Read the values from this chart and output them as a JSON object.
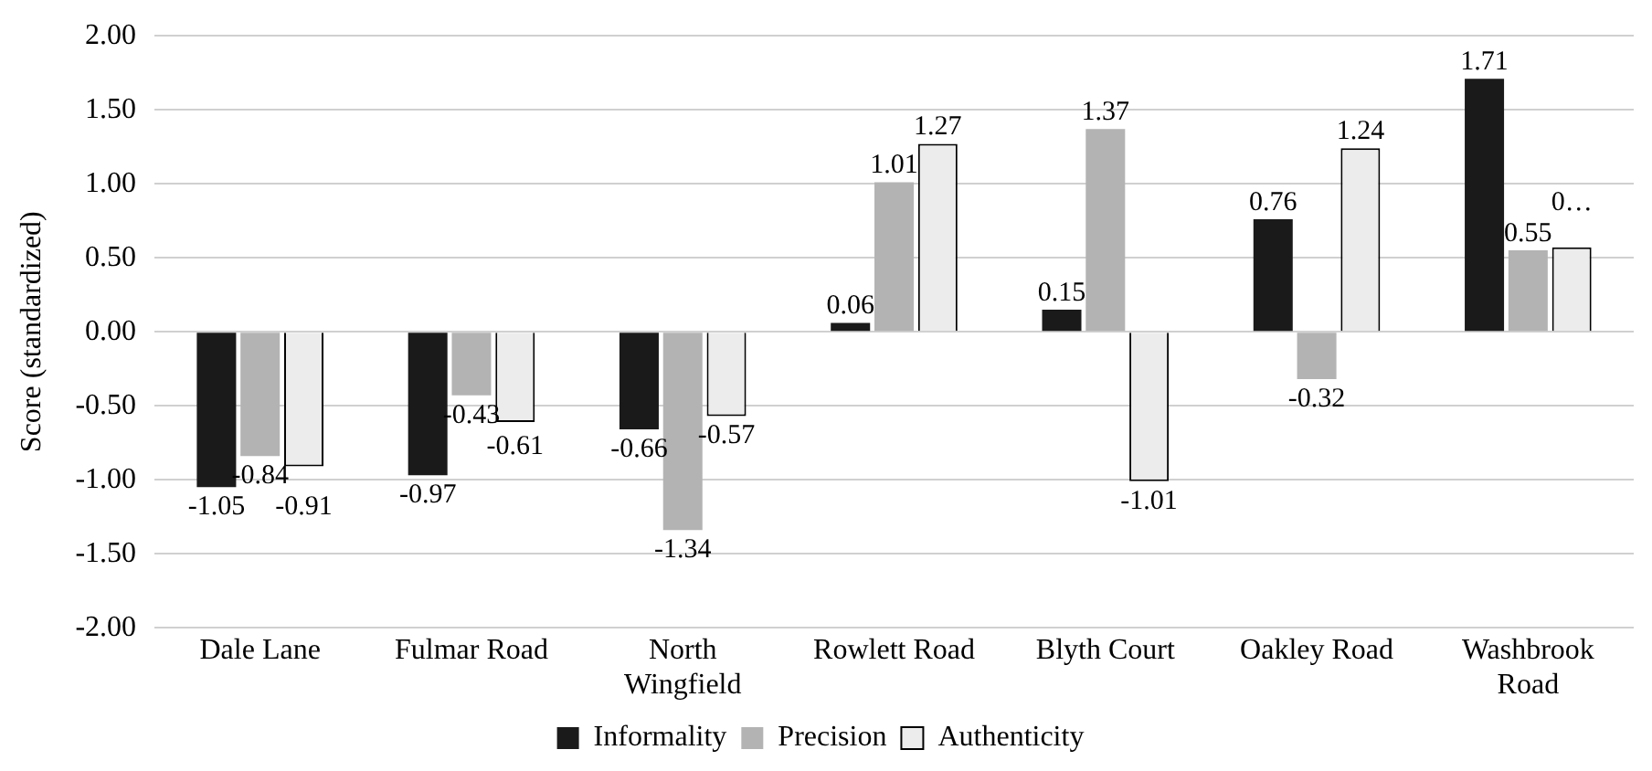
{
  "chart_data": {
    "type": "bar",
    "ylabel": "Score (standardized)",
    "categories": [
      "Dale Lane",
      "Fulmar Road",
      "North Wingfield",
      "Rowlett Road",
      "Blyth Court",
      "Oakley Road",
      "Washbrook Road"
    ],
    "series": [
      {
        "name": "Informality",
        "color": "#1a1a1a",
        "values": [
          -1.05,
          -0.97,
          -0.66,
          0.06,
          0.15,
          0.76,
          1.71
        ]
      },
      {
        "name": "Precision",
        "color": "#b3b3b3",
        "values": [
          -0.84,
          -0.43,
          -1.34,
          1.01,
          1.37,
          -0.32,
          0.55
        ]
      },
      {
        "name": "Authenticity",
        "color": "#ececec",
        "values": [
          -0.91,
          -0.61,
          -0.57,
          1.27,
          -1.01,
          1.24,
          0.57
        ],
        "value_labels": [
          "-0.91",
          "-0.61",
          "-0.57",
          "1.27",
          "-1.01",
          "1.24",
          "0…"
        ]
      }
    ],
    "data_labels": true,
    "ylim": [
      -2,
      2
    ],
    "yticks": [
      {
        "value": -2,
        "label": "-2.00"
      },
      {
        "value": -1.5,
        "label": "-1.50"
      },
      {
        "value": -1,
        "label": "-1.00"
      },
      {
        "value": -0.5,
        "label": "-0.50"
      },
      {
        "value": 0,
        "label": "0.00"
      },
      {
        "value": 0.5,
        "label": "0.50"
      },
      {
        "value": 1,
        "label": "1.00"
      },
      {
        "value": 1.5,
        "label": "1.50"
      },
      {
        "value": 2,
        "label": "2.00"
      }
    ],
    "grid": "y",
    "legend": "bottom"
  }
}
